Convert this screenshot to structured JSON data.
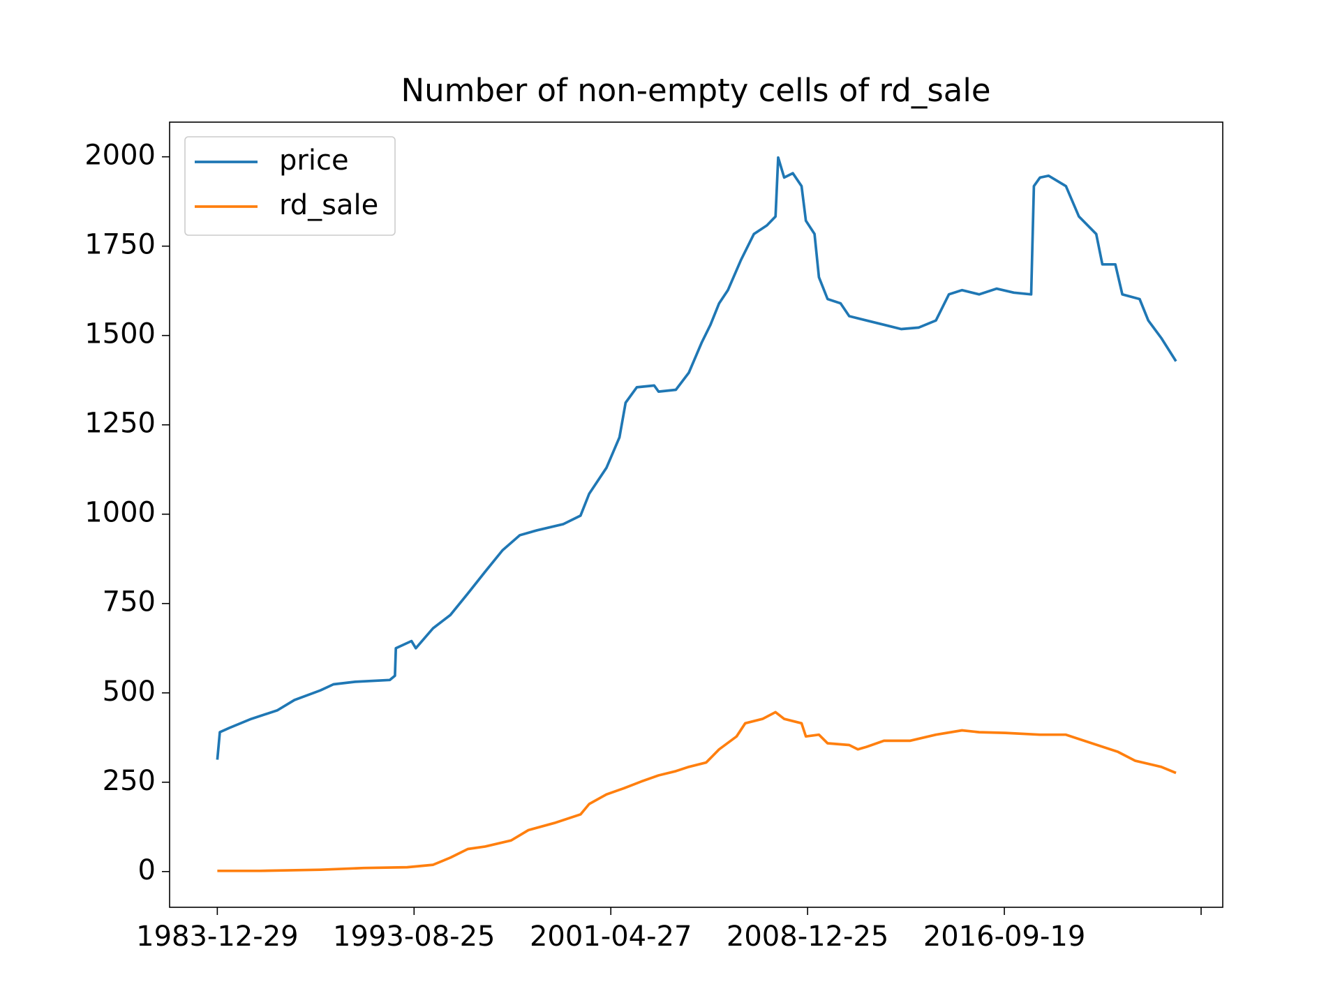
{
  "chart_data": {
    "type": "line",
    "title": "Number of non-empty cells of rd_sale",
    "xlim": [
      -485,
      10220
    ],
    "xticks": [
      {
        "value": 0,
        "label": "1983-12-29"
      },
      {
        "value": 2000,
        "label": "1993-08-25"
      },
      {
        "value": 4000,
        "label": "2001-04-27"
      },
      {
        "value": 6000,
        "label": "2008-12-25"
      },
      {
        "value": 8000,
        "label": "2016-09-19"
      },
      {
        "value": 10000,
        "label": null
      }
    ],
    "ylim": [
      -100,
      2097
    ],
    "yticks": [
      0,
      250,
      500,
      750,
      1000,
      1250,
      1500,
      1750,
      2000
    ],
    "legend": "upper left",
    "series": [
      {
        "name": "price",
        "color": "#1f77b4",
        "x": [
          0,
          26,
          123,
          344,
          608,
          784,
          1048,
          1181,
          1401,
          1753,
          1806,
          1815,
          1974,
          2018,
          2194,
          2370,
          2546,
          2722,
          2899,
          3075,
          3251,
          3515,
          3692,
          3780,
          3956,
          4088,
          4150,
          4264,
          4441,
          4485,
          4661,
          4793,
          4925,
          5013,
          5101,
          5190,
          5322,
          5454,
          5586,
          5674,
          5701,
          5762,
          5850,
          5939,
          5983,
          6071,
          6115,
          6203,
          6335,
          6423,
          6599,
          6776,
          6952,
          7128,
          7304,
          7436,
          7569,
          7745,
          7921,
          8097,
          8273,
          8300,
          8362,
          8450,
          8626,
          8758,
          8934,
          8996,
          9128,
          9199,
          9375,
          9463,
          9595,
          9745
        ],
        "values": [
          313,
          390,
          402,
          427,
          451,
          480,
          507,
          524,
          531,
          536,
          548,
          625,
          645,
          625,
          681,
          718,
          778,
          839,
          899,
          941,
          955,
          972,
          996,
          1057,
          1130,
          1215,
          1312,
          1355,
          1360,
          1343,
          1348,
          1396,
          1481,
          1530,
          1590,
          1627,
          1711,
          1784,
          1808,
          1833,
          1998,
          1942,
          1954,
          1918,
          1821,
          1784,
          1663,
          1602,
          1590,
          1554,
          1542,
          1530,
          1518,
          1522,
          1542,
          1615,
          1627,
          1615,
          1631,
          1620,
          1615,
          1918,
          1942,
          1947,
          1918,
          1833,
          1784,
          1699,
          1699,
          1615,
          1602,
          1542,
          1493,
          1428
        ]
      },
      {
        "name": "rd_sale",
        "color": "#ff7f0e",
        "x": [
          0,
          432,
          1048,
          1489,
          1930,
          2194,
          2370,
          2546,
          2722,
          2987,
          3163,
          3427,
          3692,
          3780,
          3956,
          4132,
          4309,
          4485,
          4661,
          4793,
          4969,
          5101,
          5278,
          5366,
          5542,
          5674,
          5762,
          5939,
          5983,
          6115,
          6203,
          6423,
          6511,
          6599,
          6776,
          7040,
          7304,
          7569,
          7745,
          8009,
          8362,
          8626,
          8890,
          9155,
          9331,
          9595,
          9745
        ],
        "values": [
          2,
          2,
          5,
          10,
          12,
          19,
          39,
          63,
          70,
          87,
          116,
          136,
          160,
          189,
          216,
          233,
          252,
          269,
          281,
          293,
          305,
          342,
          378,
          415,
          427,
          446,
          427,
          415,
          378,
          383,
          359,
          354,
          342,
          349,
          366,
          366,
          383,
          395,
          390,
          388,
          383,
          383,
          359,
          335,
          310,
          293,
          276
        ]
      }
    ]
  }
}
